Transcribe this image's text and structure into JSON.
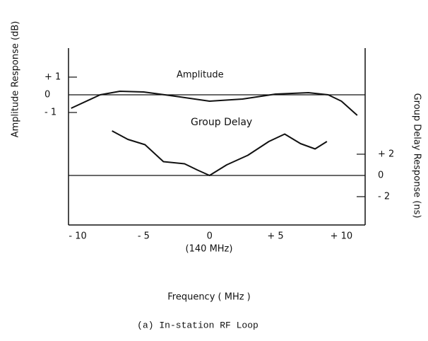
{
  "chart_data": {
    "type": "line",
    "caption": "(a)   In-station RF Loop",
    "x_label": "Frequency  ( MHz )",
    "x_sublabel": "(140 MHz)",
    "y_label": "Amplitude Response (dB)",
    "y2_label": "Group Delay Response (ns)",
    "annotations": [
      "Amplitude",
      "Group  Delay"
    ],
    "xlim": [
      -10.7,
      11.8
    ],
    "xticks": [
      {
        "value": -10,
        "label": "- 10"
      },
      {
        "value": -5,
        "label": "- 5"
      },
      0,
      {
        "value": 5,
        "label": "+ 5"
      },
      {
        "value": 10,
        "label": "+ 10"
      }
    ],
    "ylim": [
      -7.36,
      2.64
    ],
    "yticks": [
      {
        "value": 1,
        "label": "+ 1"
      },
      0,
      {
        "value": -1,
        "label": "- 1"
      }
    ],
    "y2lim": [
      -4.67,
      12
    ],
    "y2ticks": [
      {
        "value": 2,
        "label": "+ 2"
      },
      0,
      {
        "value": -2,
        "label": "- 2"
      }
    ],
    "series": [
      {
        "name": "Amplitude",
        "color": "#111111",
        "x": [
          -10.5,
          -8.3,
          -6.8,
          -5,
          -3,
          0,
          2.5,
          5,
          7.5,
          9,
          10,
          11.2
        ],
        "values": [
          -0.76,
          0,
          0.2,
          0.16,
          -0.04,
          -0.36,
          -0.24,
          0.04,
          0.12,
          0,
          -0.36,
          -1.16
        ]
      },
      {
        "name": "Group Delay",
        "color": "#111111",
        "axis": "y2",
        "x": [
          -7.4,
          -6.2,
          -4.9,
          -3.5,
          -1.9,
          -0.9,
          0,
          1.3,
          2.9,
          4.5,
          5.7,
          6.9,
          8.0,
          8.9
        ],
        "values": [
          4.2,
          3.4,
          2.9,
          1.3,
          1.1,
          0.5,
          0,
          1.0,
          1.9,
          3.2,
          3.9,
          3.0,
          2.5,
          3.2
        ]
      }
    ]
  }
}
